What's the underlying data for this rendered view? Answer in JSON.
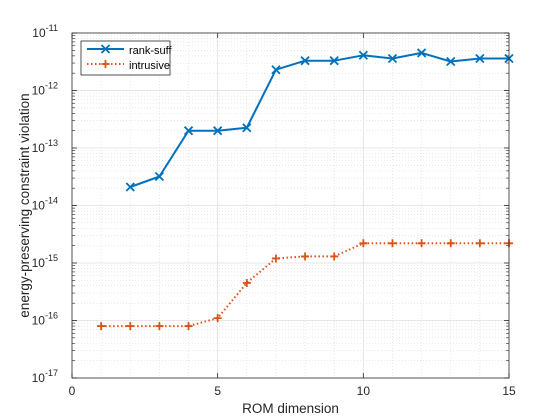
{
  "chart_data": {
    "type": "line",
    "title": "",
    "xlabel": "ROM dimension",
    "ylabel": "energy-preserving constraint violation",
    "xlim": [
      0,
      15
    ],
    "ylim": [
      1e-17,
      1e-11
    ],
    "yscale": "log",
    "grid": "major and minor (dotted)",
    "x_ticks": [
      "0",
      "5",
      "10",
      "15"
    ],
    "y_ticks": [
      {
        "base": "10",
        "exp": "-17",
        "value": 1e-17
      },
      {
        "base": "10",
        "exp": "-16",
        "value": 1e-16
      },
      {
        "base": "10",
        "exp": "-15",
        "value": 1e-15
      },
      {
        "base": "10",
        "exp": "-14",
        "value": 1e-14
      },
      {
        "base": "10",
        "exp": "-13",
        "value": 1e-13
      },
      {
        "base": "10",
        "exp": "-12",
        "value": 1e-12
      },
      {
        "base": "10",
        "exp": "-11",
        "value": 1e-11
      }
    ],
    "legend_position": "top-left",
    "series": [
      {
        "name": "rank-suff",
        "color": "#0072BD",
        "marker": "x",
        "line_style": "solid",
        "x": [
          2,
          3,
          4,
          5,
          6,
          7,
          8,
          9,
          10,
          11,
          12,
          13,
          14,
          15
        ],
        "y": [
          2.1e-14,
          3.2e-14,
          2e-13,
          2e-13,
          2.25e-13,
          2.3e-12,
          3.3e-12,
          3.3e-12,
          4.1e-12,
          3.6e-12,
          4.5e-12,
          3.2e-12,
          3.6e-12,
          3.6e-12
        ]
      },
      {
        "name": "intrusive",
        "color": "#D95319",
        "marker": "+",
        "line_style": "dotted",
        "x": [
          1,
          2,
          3,
          4,
          5,
          6,
          7,
          8,
          9,
          10,
          11,
          12,
          13,
          14,
          15
        ],
        "y": [
          8e-17,
          8e-17,
          8e-17,
          8e-17,
          1.1e-16,
          4.5e-16,
          1.2e-15,
          1.3e-15,
          1.3e-15,
          2.2e-15,
          2.2e-15,
          2.2e-15,
          2.2e-15,
          2.2e-15,
          2.2e-15
        ]
      }
    ]
  }
}
